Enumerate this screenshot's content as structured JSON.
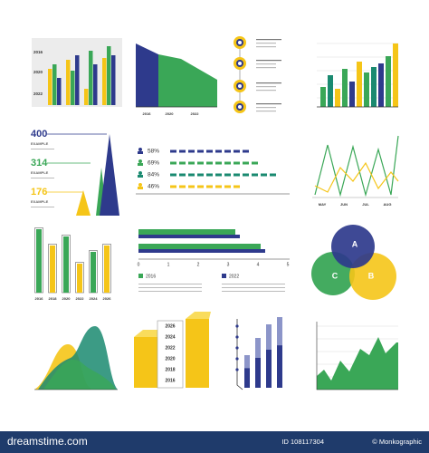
{
  "bar_panel": {
    "y_labels": [
      "2016",
      "2020",
      "2022"
    ]
  },
  "area_panel": {
    "x_labels": [
      "2016",
      "2020",
      "2022"
    ]
  },
  "stats": [
    {
      "value": "400",
      "label": "EXAMPLE"
    },
    {
      "value": "314",
      "label": "EXAMPLE"
    },
    {
      "value": "176",
      "label": "EXAMPLE"
    }
  ],
  "percent_rows": [
    "58%",
    "69%",
    "84%",
    "46%"
  ],
  "line_panel": {
    "x_labels": [
      "MAY",
      "JUN",
      "JUL",
      "AUG"
    ]
  },
  "column_panel": {
    "x_labels": [
      "2016",
      "2018",
      "2020",
      "2022",
      "2024",
      "2026"
    ]
  },
  "hbar_panel": {
    "ticks": [
      "0",
      "1",
      "2",
      "3",
      "4",
      "5"
    ],
    "legend": [
      "2016",
      "2022"
    ]
  },
  "venn": [
    "A",
    "B",
    "C"
  ],
  "stack_panel": {
    "labels": [
      "2026",
      "2024",
      "2022",
      "2020",
      "2018",
      "2016"
    ]
  },
  "footer": {
    "site": "dreamstime.com",
    "id": "ID 108117304",
    "credit": "© Monkographic"
  }
}
